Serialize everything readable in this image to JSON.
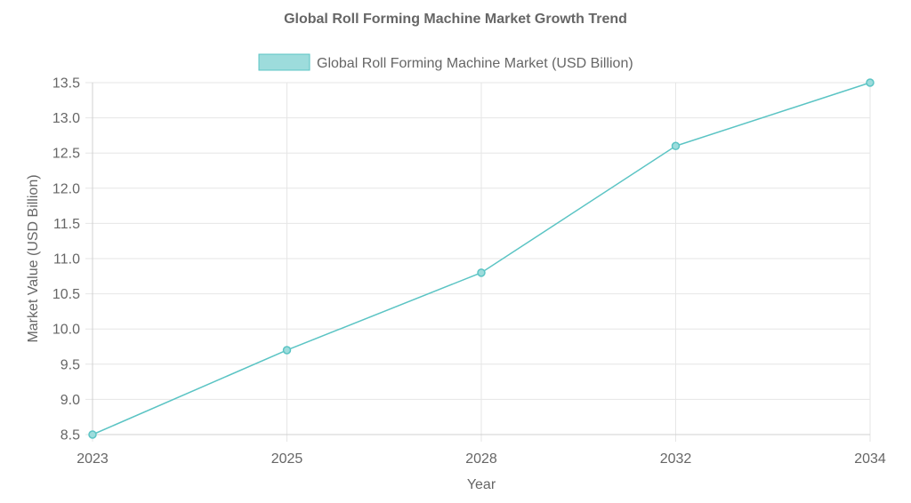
{
  "chart_data": {
    "type": "line",
    "title": "Global Roll Forming Machine Market Growth Trend",
    "xlabel": "Year",
    "ylabel": "Market Value (USD Billion)",
    "categories": [
      "2023",
      "2025",
      "2028",
      "2032",
      "2034"
    ],
    "series": [
      {
        "name": "Global Roll Forming Machine Market (USD Billion)",
        "values": [
          8.5,
          9.7,
          10.8,
          12.6,
          13.5
        ],
        "color": "#5bc4c4",
        "fill": "#9ddcdc"
      }
    ],
    "ylim": [
      8.5,
      13.5
    ],
    "yticks": [
      "8.5",
      "9.0",
      "9.5",
      "10.0",
      "10.5",
      "11.0",
      "11.5",
      "12.0",
      "12.5",
      "13.0",
      "13.5"
    ],
    "ytick_values": [
      8.5,
      9.0,
      9.5,
      10.0,
      10.5,
      11.0,
      11.5,
      12.0,
      12.5,
      13.0,
      13.5
    ],
    "grid": true,
    "legend_position": "top"
  }
}
